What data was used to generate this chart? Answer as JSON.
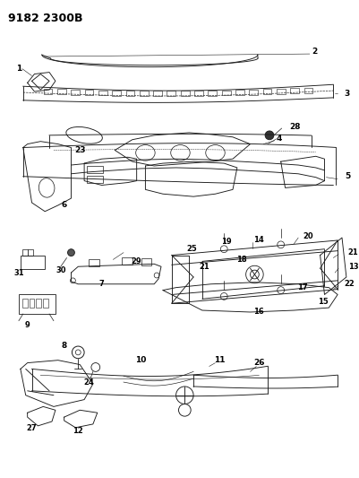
{
  "title": "9182 2300B",
  "bg_color": "#ffffff",
  "fig_width": 4.02,
  "fig_height": 5.33,
  "dpi": 100,
  "line_color": "#1a1a1a",
  "text_color": "#000000",
  "title_fontsize": 9,
  "label_fontsize": 6.5
}
